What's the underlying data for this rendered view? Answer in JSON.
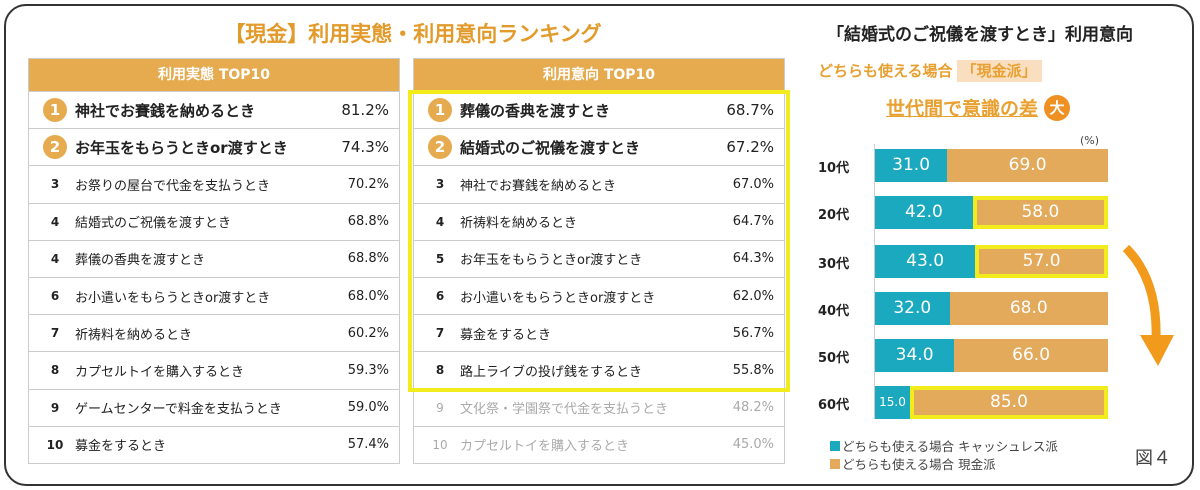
{
  "title": "【現金】利用実態・利用意向ランキング",
  "left_table": {
    "header": "利用実態 TOP10",
    "rows": [
      {
        "rank": "1",
        "label": "神社でお賽銭を納めるとき",
        "value": "81.2%"
      },
      {
        "rank": "2",
        "label": "お年玉をもらうときor渡すとき",
        "value": "74.3%"
      },
      {
        "rank": "3",
        "label": "お祭りの屋台で代金を支払うとき",
        "value": "70.2%"
      },
      {
        "rank": "4",
        "label": "結婚式のご祝儀を渡すとき",
        "value": "68.8%"
      },
      {
        "rank": "4",
        "label": "葬儀の香典を渡すとき",
        "value": "68.8%"
      },
      {
        "rank": "6",
        "label": "お小遣いをもらうときor渡すとき",
        "value": "68.0%"
      },
      {
        "rank": "7",
        "label": "祈祷料を納めるとき",
        "value": "60.2%"
      },
      {
        "rank": "8",
        "label": "カプセルトイを購入するとき",
        "value": "59.3%"
      },
      {
        "rank": "9",
        "label": "ゲームセンターで料金を支払うとき",
        "value": "59.0%"
      },
      {
        "rank": "10",
        "label": "募金をするとき",
        "value": "57.4%"
      }
    ]
  },
  "right_table": {
    "header": "利用意向 TOP10",
    "rows": [
      {
        "rank": "1",
        "label": "葬儀の香典を渡すとき",
        "value": "68.7%"
      },
      {
        "rank": "2",
        "label": "結婚式のご祝儀を渡すとき",
        "value": "67.2%"
      },
      {
        "rank": "3",
        "label": "神社でお賽銭を納めるとき",
        "value": "67.0%"
      },
      {
        "rank": "4",
        "label": "祈祷料を納めるとき",
        "value": "64.7%"
      },
      {
        "rank": "5",
        "label": "お年玉をもらうときor渡すとき",
        "value": "64.3%"
      },
      {
        "rank": "6",
        "label": "お小遣いをもらうときor渡すとき",
        "value": "62.0%"
      },
      {
        "rank": "7",
        "label": "募金をするとき",
        "value": "56.7%"
      },
      {
        "rank": "8",
        "label": "路上ライブの投げ銭をするとき",
        "value": "55.8%"
      },
      {
        "rank": "9",
        "label": "文化祭・学園祭で代金を支払うとき",
        "value": "48.2%"
      },
      {
        "rank": "10",
        "label": "カプセルトイを購入するとき",
        "value": "45.0%"
      }
    ]
  },
  "chart_title": "「結婚式のご祝儀を渡すとき」利用意向",
  "subtitle_prefix": "どちらも使える場合",
  "subtitle_tag": "「現金派」",
  "headline": "世代間で意識の差",
  "headline_badge": "大",
  "figure_label": "図４",
  "colors": {
    "cashless": "#1ba9c0",
    "cash": "#e3aa5c",
    "header": "#e6ab4f",
    "highlight": "#f3ec1c",
    "accent": "#e8a030"
  },
  "chart_data": {
    "type": "bar",
    "stacked": true,
    "orientation": "horizontal",
    "unit": "(%)",
    "categories": [
      "10代",
      "20代",
      "30代",
      "40代",
      "50代",
      "60代"
    ],
    "series": [
      {
        "name": "どちらも使える場合 キャッシュレス派",
        "values": [
          31.0,
          42.0,
          43.0,
          32.0,
          34.0,
          15.0
        ]
      },
      {
        "name": "どちらも使える場合 現金派",
        "values": [
          69.0,
          58.0,
          57.0,
          68.0,
          66.0,
          85.0
        ]
      }
    ],
    "highlighted_cash": [
      "20代",
      "30代",
      "60代"
    ],
    "xlim": [
      0,
      100
    ],
    "legend": "bottom"
  }
}
